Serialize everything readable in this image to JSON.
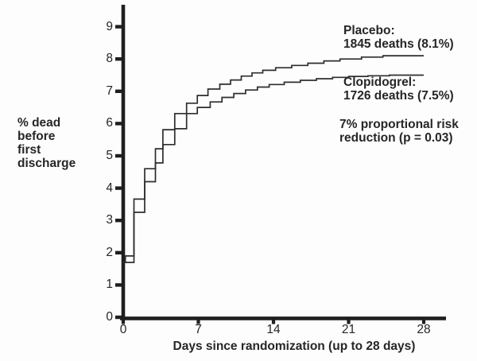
{
  "chart_data": {
    "type": "line",
    "line_style": "step",
    "title": "",
    "xlabel": "Days since randomization (up to 28 days)",
    "ylabel_lines": [
      "% dead",
      "before",
      "first",
      "discharge"
    ],
    "xlim": [
      0,
      28
    ],
    "ylim": [
      0,
      9
    ],
    "x_ticks": [
      0,
      7,
      14,
      21,
      28
    ],
    "y_ticks": [
      0,
      1,
      2,
      3,
      4,
      5,
      6,
      7,
      8,
      9
    ],
    "grid": false,
    "legend_position": "annotations-right-of-curves",
    "series": [
      {
        "name": "Placebo",
        "deaths": 1845,
        "final_pct": 8.1,
        "steps": [
          [
            0,
            1.7
          ],
          [
            0.2,
            1.9
          ],
          [
            1,
            3.66
          ],
          [
            2,
            4.6
          ],
          [
            3,
            5.22
          ],
          [
            3.7,
            5.81
          ],
          [
            4.8,
            6.31
          ],
          [
            5.9,
            6.63
          ],
          [
            6.9,
            6.87
          ],
          [
            7.9,
            7.07
          ],
          [
            9,
            7.22
          ],
          [
            10,
            7.35
          ],
          [
            11,
            7.47
          ],
          [
            12,
            7.57
          ],
          [
            13,
            7.65
          ],
          [
            14.2,
            7.73
          ],
          [
            15.7,
            7.8
          ],
          [
            17.2,
            7.87
          ],
          [
            18.7,
            7.94
          ],
          [
            20.2,
            8.0
          ],
          [
            22.2,
            8.06
          ],
          [
            24.2,
            8.1
          ]
        ]
      },
      {
        "name": "Clopidogrel",
        "deaths": 1726,
        "final_pct": 7.5,
        "steps": [
          [
            0,
            1.7
          ],
          [
            1,
            3.25
          ],
          [
            2,
            4.2
          ],
          [
            3,
            4.78
          ],
          [
            3.7,
            5.35
          ],
          [
            4.8,
            5.84
          ],
          [
            5.9,
            6.31
          ],
          [
            6.9,
            6.5
          ],
          [
            8.1,
            6.67
          ],
          [
            9.2,
            6.81
          ],
          [
            10.3,
            6.93
          ],
          [
            11.4,
            7.04
          ],
          [
            12.5,
            7.13
          ],
          [
            13.6,
            7.21
          ],
          [
            15,
            7.28
          ],
          [
            16.5,
            7.34
          ],
          [
            18,
            7.39
          ],
          [
            19.5,
            7.43
          ],
          [
            21,
            7.46
          ],
          [
            22.8,
            7.48
          ],
          [
            24.8,
            7.5
          ]
        ]
      }
    ],
    "annotations": [
      {
        "lines": [
          "Placebo:",
          "1845 deaths (8.1%)"
        ]
      },
      {
        "lines": [
          "Clopidogrel:",
          "1726 deaths (7.5%)"
        ]
      },
      {
        "lines": [
          "7% proportional risk",
          "reduction (p = 0.03)"
        ]
      }
    ],
    "colors": {
      "axis": "#1f1f1f",
      "curve": "#2e2e2e",
      "text": "#262626",
      "background": "#fdfdfd"
    }
  }
}
